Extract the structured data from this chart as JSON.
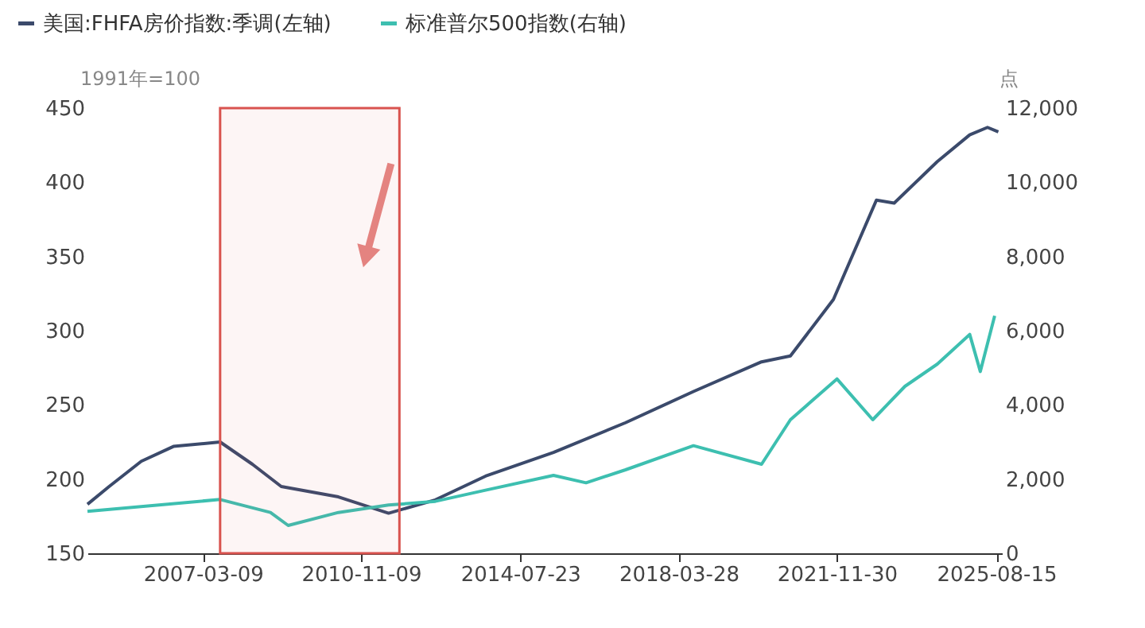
{
  "chart_data": {
    "type": "line",
    "ylabel": "1991年=100",
    "y2label": "点",
    "xlim": [
      "2004-07",
      "2025-10"
    ],
    "xticks": [
      "2007-03-09",
      "2010-11-09",
      "2014-07-23",
      "2018-03-28",
      "2021-11-30",
      "2025-08-15"
    ],
    "ylim": [
      150,
      450
    ],
    "yticks": [
      150,
      200,
      250,
      300,
      350,
      400,
      450
    ],
    "y2lim": [
      0,
      12000
    ],
    "y2ticks": [
      {
        "value": 0,
        "label": "0"
      },
      {
        "value": 2000,
        "label": "2,000"
      },
      {
        "value": 4000,
        "label": "4,000"
      },
      {
        "value": 6000,
        "label": "6,000"
      },
      {
        "value": 8000,
        "label": "8,000"
      },
      {
        "value": 10000,
        "label": "10,000"
      },
      {
        "value": 12000,
        "label": "12,000"
      }
    ],
    "grid": false,
    "legend": "top left",
    "marker": "none",
    "line_style": "solid",
    "bands": [
      {
        "axis": "x",
        "from": "2007-08",
        "to": "2011-10",
        "color": "#d9534f"
      }
    ],
    "series": [
      {
        "name": "美国:FHFA房价指数:季调(左轴)",
        "color": "#3b4a6b",
        "x": [
          "2004-07",
          "2005-01",
          "2005-10",
          "2006-07",
          "2007-08",
          "2008-05",
          "2009-01",
          "2010-05",
          "2011-07",
          "2012-08",
          "2013-10",
          "2015-05",
          "2017-01",
          "2018-08",
          "2020-03",
          "2020-11",
          "2021-11",
          "2022-11",
          "2023-04",
          "2024-04",
          "2025-01",
          "2025-06",
          "2025-09"
        ],
        "values": [
          183,
          195,
          212,
          222,
          225,
          210,
          195,
          188,
          177,
          186,
          202,
          218,
          238,
          259,
          279,
          283,
          321,
          388,
          386,
          414,
          432,
          437,
          434
        ]
      },
      {
        "name": "标准普尔500指数(右轴)",
        "color": "#3dbfb0",
        "axis": "y2",
        "x": [
          "2004-07",
          "2007-08",
          "2008-10",
          "2009-03",
          "2010-05",
          "2011-07",
          "2012-08",
          "2013-10",
          "2015-05",
          "2016-02",
          "2017-01",
          "2018-08",
          "2020-03",
          "2020-11",
          "2021-12",
          "2022-10",
          "2023-07",
          "2024-04",
          "2025-01",
          "2025-04",
          "2025-08"
        ],
        "values": [
          1130,
          1450,
          1100,
          750,
          1100,
          1300,
          1400,
          1700,
          2100,
          1900,
          2250,
          2900,
          2400,
          3600,
          4700,
          3600,
          4500,
          5100,
          5900,
          4900,
          6400
        ]
      }
    ]
  }
}
